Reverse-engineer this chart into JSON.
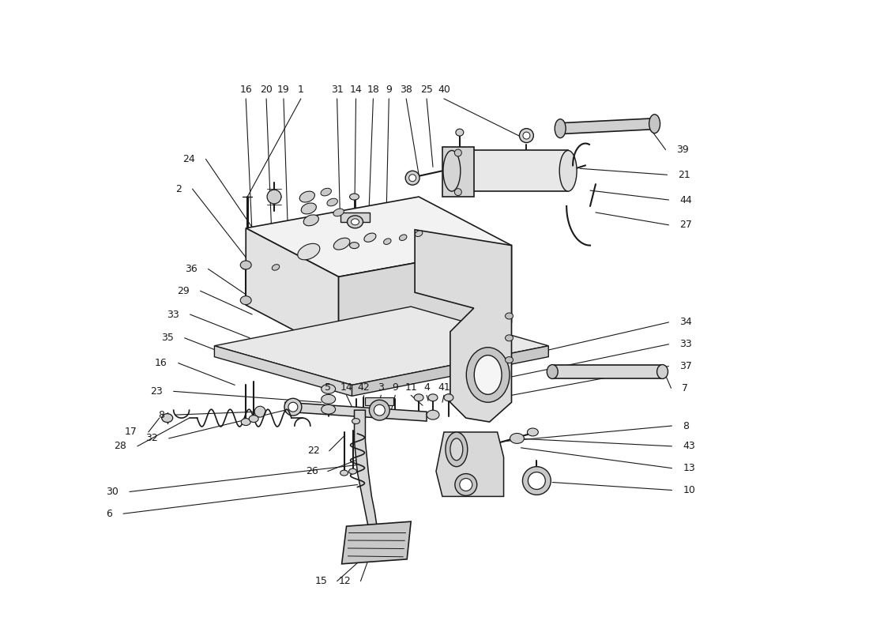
{
  "bg_color": "#ffffff",
  "line_color": "#1a1a1a",
  "fig_width": 11.0,
  "fig_height": 8.0,
  "dpi": 100,
  "label_fontsize": 9.0
}
